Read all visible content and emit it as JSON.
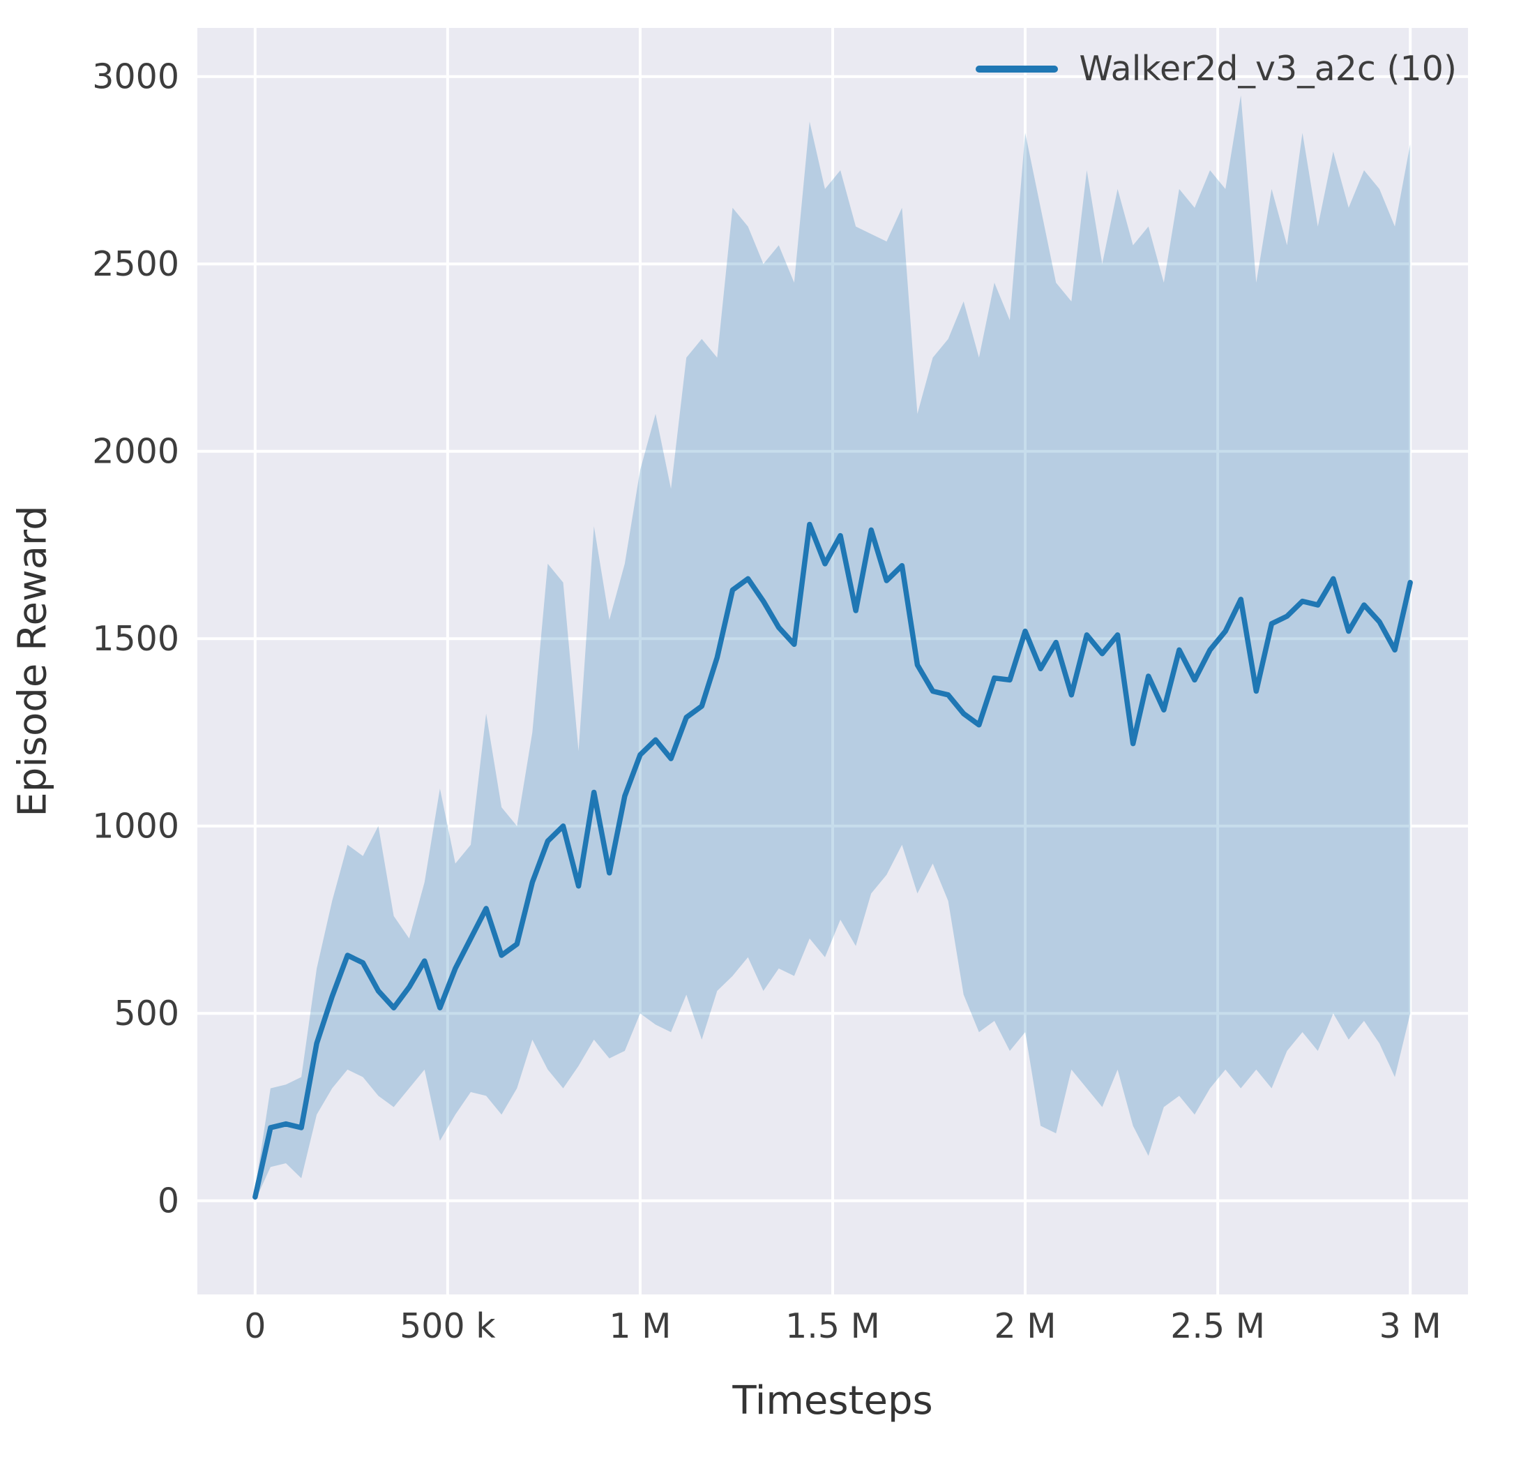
{
  "figure": {
    "background": "#ffffff"
  },
  "chart_data": {
    "type": "line",
    "title": "",
    "xlabel": "Timesteps",
    "ylabel": "Episode Reward",
    "legend_location": "upper right",
    "grid": true,
    "colors": {
      "line": "#1f77b4",
      "band": "rgba(31,119,180,0.25)",
      "plot_bg": "#eaeaf2",
      "grid": "#ffffff",
      "tick_text": "#3d3d3d"
    },
    "xlim": [
      -150000,
      3150000
    ],
    "ylim": [
      -250,
      3130
    ],
    "x_ticks": [
      {
        "v": 0,
        "label": "0"
      },
      {
        "v": 500000,
        "label": "500 k"
      },
      {
        "v": 1000000,
        "label": "1 M"
      },
      {
        "v": 1500000,
        "label": "1.5 M"
      },
      {
        "v": 2000000,
        "label": "2 M"
      },
      {
        "v": 2500000,
        "label": "2.5 M"
      },
      {
        "v": 3000000,
        "label": "3 M"
      }
    ],
    "y_ticks": [
      {
        "v": 0,
        "label": "0"
      },
      {
        "v": 500,
        "label": "500"
      },
      {
        "v": 1000,
        "label": "1000"
      },
      {
        "v": 1500,
        "label": "1500"
      },
      {
        "v": 2000,
        "label": "2000"
      },
      {
        "v": 2500,
        "label": "2500"
      },
      {
        "v": 3000,
        "label": "3000"
      }
    ],
    "x_scale": 1000,
    "series": [
      {
        "name": "Walker2d_v3_a2c (10)",
        "color": "#1f77b4",
        "x_thousands": [
          0,
          40,
          80,
          120,
          160,
          200,
          240,
          280,
          320,
          360,
          400,
          440,
          480,
          520,
          560,
          600,
          640,
          680,
          720,
          760,
          800,
          840,
          880,
          920,
          960,
          1000,
          1040,
          1080,
          1120,
          1160,
          1200,
          1240,
          1280,
          1320,
          1360,
          1400,
          1440,
          1480,
          1520,
          1560,
          1600,
          1640,
          1680,
          1720,
          1760,
          1800,
          1840,
          1880,
          1920,
          1960,
          2000,
          2040,
          2080,
          2120,
          2160,
          2200,
          2240,
          2280,
          2320,
          2360,
          2400,
          2440,
          2480,
          2520,
          2560,
          2600,
          2640,
          2680,
          2720,
          2760,
          2800,
          2840,
          2880,
          2920,
          2960,
          3000
        ],
        "mean": [
          10,
          195,
          205,
          195,
          420,
          545,
          655,
          635,
          560,
          515,
          570,
          640,
          515,
          620,
          700,
          780,
          655,
          685,
          850,
          960,
          1000,
          840,
          1090,
          875,
          1080,
          1190,
          1230,
          1180,
          1290,
          1320,
          1450,
          1630,
          1660,
          1600,
          1530,
          1485,
          1805,
          1700,
          1775,
          1575,
          1790,
          1655,
          1695,
          1430,
          1360,
          1350,
          1300,
          1270,
          1395,
          1390,
          1520,
          1420,
          1490,
          1350,
          1510,
          1460,
          1510,
          1220,
          1400,
          1310,
          1470,
          1390,
          1470,
          1520,
          1605,
          1360,
          1540,
          1560,
          1600,
          1590,
          1660,
          1520,
          1590,
          1545,
          1470,
          1650
        ],
        "band_lower": [
          0,
          90,
          100,
          60,
          230,
          300,
          350,
          330,
          280,
          250,
          300,
          350,
          160,
          230,
          290,
          280,
          230,
          300,
          430,
          350,
          300,
          360,
          430,
          380,
          400,
          500,
          470,
          450,
          550,
          430,
          560,
          600,
          650,
          560,
          620,
          600,
          700,
          650,
          750,
          680,
          820,
          870,
          950,
          820,
          900,
          800,
          550,
          450,
          480,
          400,
          450,
          200,
          180,
          350,
          300,
          250,
          350,
          200,
          120,
          250,
          280,
          230,
          300,
          350,
          300,
          350,
          300,
          400,
          450,
          400,
          500,
          430,
          480,
          420,
          330,
          500
        ],
        "band_upper": [
          30,
          300,
          310,
          330,
          620,
          800,
          950,
          920,
          1000,
          760,
          700,
          850,
          1100,
          900,
          950,
          1300,
          1050,
          1000,
          1250,
          1700,
          1650,
          1200,
          1800,
          1550,
          1700,
          1950,
          2100,
          1900,
          2250,
          2300,
          2250,
          2650,
          2600,
          2500,
          2550,
          2450,
          2880,
          2700,
          2750,
          2600,
          2580,
          2560,
          2650,
          2100,
          2250,
          2300,
          2400,
          2250,
          2450,
          2350,
          2850,
          2650,
          2450,
          2400,
          2750,
          2500,
          2700,
          2550,
          2600,
          2450,
          2700,
          2650,
          2750,
          2700,
          2950,
          2450,
          2700,
          2550,
          2850,
          2600,
          2800,
          2650,
          2750,
          2700,
          2600,
          2820
        ]
      }
    ],
    "legend": [
      {
        "label": "Walker2d_v3_a2c (10)",
        "color": "#1f77b4"
      }
    ]
  }
}
